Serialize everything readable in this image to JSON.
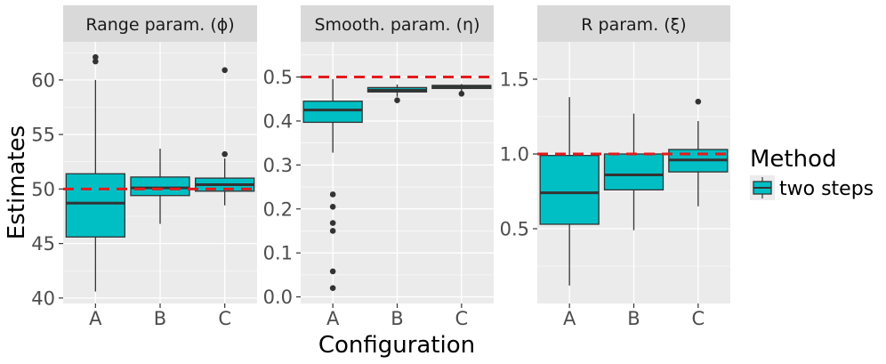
{
  "chart_data": {
    "type": "boxplot",
    "xlabel": "Configuration",
    "ylabel": "Estimates",
    "categories": [
      "A",
      "B",
      "C"
    ],
    "legend": {
      "title": "Method",
      "entries": [
        "two steps"
      ]
    },
    "colors": {
      "panel_bg": "#ebebeb",
      "strip_bg": "#d9d9d9",
      "grid": "#ffffff",
      "box_fill": "#00bfc4",
      "box_line": "#333333",
      "ref_line": "#e41a1c",
      "outlier": "#333333",
      "tick": "#333333"
    },
    "facets": [
      {
        "strip": "Range param. (ϕ)",
        "ylim": [
          39.5,
          63.5
        ],
        "yticks": [
          40,
          45,
          50,
          55,
          60
        ],
        "ytick_labels": [
          "40",
          "45",
          "50",
          "55",
          "60"
        ],
        "reference": 50,
        "boxes": [
          {
            "category": "A",
            "min": 40.6,
            "q1": 45.6,
            "median": 48.7,
            "q3": 51.4,
            "max": 60.0,
            "outliers": [
              61.7,
              62.1
            ]
          },
          {
            "category": "B",
            "min": 46.8,
            "q1": 49.4,
            "median": 50.1,
            "q3": 51.1,
            "max": 53.7,
            "outliers": []
          },
          {
            "category": "C",
            "min": 48.5,
            "q1": 49.8,
            "median": 50.4,
            "q3": 51.0,
            "max": 52.8,
            "outliers": [
              53.2,
              60.9
            ]
          }
        ]
      },
      {
        "strip": "Smooth. param. (η)",
        "ylim": [
          -0.015,
          0.58
        ],
        "yticks": [
          0.0,
          0.1,
          0.2,
          0.3,
          0.4,
          0.5
        ],
        "ytick_labels": [
          "0.0",
          "0.1",
          "0.2",
          "0.3",
          "0.4",
          "0.5"
        ],
        "reference": 0.5,
        "boxes": [
          {
            "category": "A",
            "min": 0.328,
            "q1": 0.397,
            "median": 0.425,
            "q3": 0.445,
            "max": 0.495,
            "outliers": [
              0.233,
              0.205,
              0.168,
              0.15,
              0.058,
              0.02
            ]
          },
          {
            "category": "B",
            "min": 0.455,
            "q1": 0.466,
            "median": 0.47,
            "q3": 0.476,
            "max": 0.483,
            "outliers": [
              0.447
            ]
          },
          {
            "category": "C",
            "min": 0.468,
            "q1": 0.474,
            "median": 0.478,
            "q3": 0.481,
            "max": 0.484,
            "outliers": [
              0.462
            ]
          }
        ]
      },
      {
        "strip": "R param. (ξ)",
        "ylim": [
          0.0,
          1.75
        ],
        "yticks": [
          0.5,
          1.0,
          1.5
        ],
        "ytick_labels": [
          "0.5",
          "1.0",
          "1.5"
        ],
        "reference": 1.0,
        "boxes": [
          {
            "category": "A",
            "min": 0.12,
            "q1": 0.53,
            "median": 0.74,
            "q3": 0.99,
            "max": 1.38,
            "outliers": []
          },
          {
            "category": "B",
            "min": 0.49,
            "q1": 0.76,
            "median": 0.86,
            "q3": 1.0,
            "max": 1.27,
            "outliers": []
          },
          {
            "category": "C",
            "min": 0.65,
            "q1": 0.88,
            "median": 0.96,
            "q3": 1.03,
            "max": 1.22,
            "outliers": [
              1.35
            ]
          }
        ]
      }
    ]
  }
}
